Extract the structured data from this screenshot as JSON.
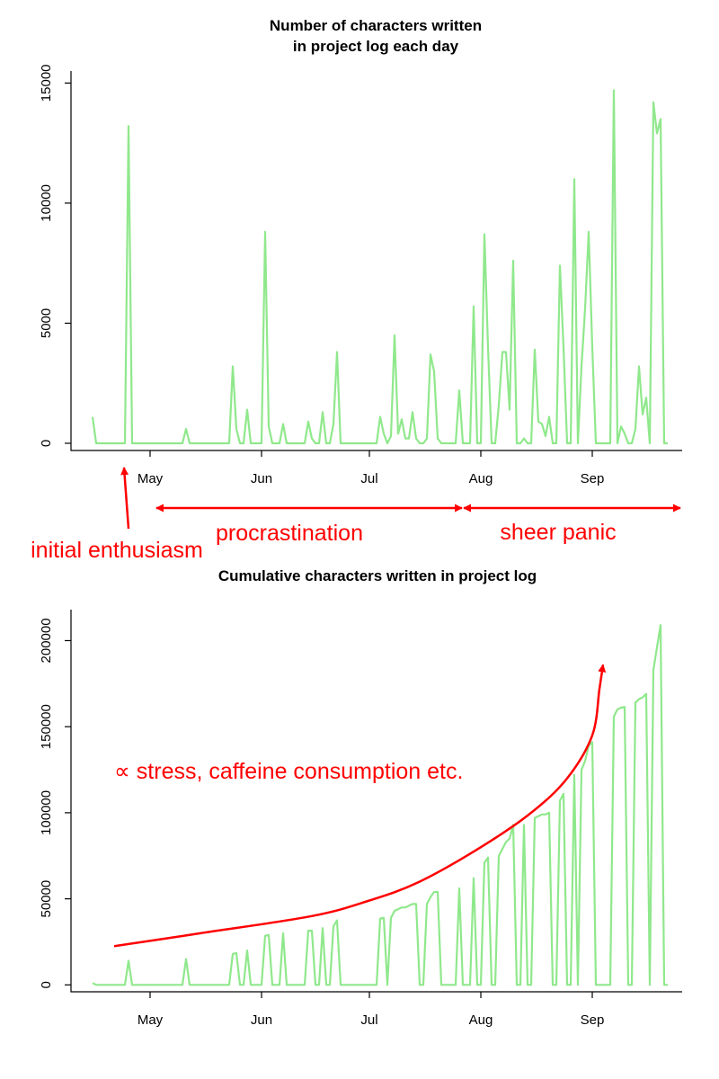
{
  "colors": {
    "series": "#90e88c",
    "annotation": "#ff0000",
    "axis": "#000000"
  },
  "chart_data": [
    {
      "type": "line",
      "title": [
        "Number of characters written",
        "in project log each day"
      ],
      "xlabel": "",
      "ylabel": "",
      "x_axis": "date",
      "x_range": [
        "2017-04-09",
        "2017-09-26"
      ],
      "ylim": [
        -300,
        15500
      ],
      "x_ticks": [
        {
          "date": "2017-05-01",
          "label": "May"
        },
        {
          "date": "2017-06-01",
          "label": "Jun"
        },
        {
          "date": "2017-07-01",
          "label": "Jul"
        },
        {
          "date": "2017-08-01",
          "label": "Aug"
        },
        {
          "date": "2017-09-01",
          "label": "Sep"
        }
      ],
      "y_ticks": [
        0,
        5000,
        10000,
        15000
      ],
      "series": [
        {
          "values": [
            [
              "2017-04-15",
              1100
            ],
            [
              "2017-04-16",
              0
            ],
            [
              "2017-04-23",
              0
            ],
            [
              "2017-04-24",
              0
            ],
            [
              "2017-04-25",
              13200
            ],
            [
              "2017-04-26",
              0
            ],
            [
              "2017-05-09",
              0
            ],
            [
              "2017-05-10",
              0
            ],
            [
              "2017-05-11",
              600
            ],
            [
              "2017-05-12",
              0
            ],
            [
              "2017-05-22",
              0
            ],
            [
              "2017-05-23",
              0
            ],
            [
              "2017-05-24",
              3200
            ],
            [
              "2017-05-25",
              600
            ],
            [
              "2017-05-26",
              0
            ],
            [
              "2017-05-27",
              0
            ],
            [
              "2017-05-28",
              1400
            ],
            [
              "2017-05-29",
              0
            ],
            [
              "2017-06-01",
              0
            ],
            [
              "2017-06-02",
              8800
            ],
            [
              "2017-06-03",
              700
            ],
            [
              "2017-06-04",
              0
            ],
            [
              "2017-06-06",
              0
            ],
            [
              "2017-06-07",
              800
            ],
            [
              "2017-06-08",
              0
            ],
            [
              "2017-06-13",
              0
            ],
            [
              "2017-06-14",
              900
            ],
            [
              "2017-06-15",
              200
            ],
            [
              "2017-06-16",
              0
            ],
            [
              "2017-06-17",
              0
            ],
            [
              "2017-06-18",
              1300
            ],
            [
              "2017-06-19",
              0
            ],
            [
              "2017-06-20",
              0
            ],
            [
              "2017-06-21",
              800
            ],
            [
              "2017-06-22",
              3800
            ],
            [
              "2017-06-23",
              0
            ],
            [
              "2017-07-03",
              0
            ],
            [
              "2017-07-04",
              1100
            ],
            [
              "2017-07-05",
              400
            ],
            [
              "2017-07-06",
              0
            ],
            [
              "2017-07-07",
              300
            ],
            [
              "2017-07-08",
              4500
            ],
            [
              "2017-07-09",
              400
            ],
            [
              "2017-07-10",
              1000
            ],
            [
              "2017-07-11",
              200
            ],
            [
              "2017-07-12",
              200
            ],
            [
              "2017-07-13",
              1300
            ],
            [
              "2017-07-14",
              200
            ],
            [
              "2017-07-15",
              0
            ],
            [
              "2017-07-16",
              0
            ],
            [
              "2017-07-17",
              200
            ],
            [
              "2017-07-18",
              3700
            ],
            [
              "2017-07-19",
              3000
            ],
            [
              "2017-07-20",
              200
            ],
            [
              "2017-07-21",
              0
            ],
            [
              "2017-07-25",
              0
            ],
            [
              "2017-07-26",
              2200
            ],
            [
              "2017-07-27",
              0
            ],
            [
              "2017-07-28",
              0
            ],
            [
              "2017-07-29",
              0
            ],
            [
              "2017-07-30",
              5700
            ],
            [
              "2017-07-31",
              0
            ],
            [
              "2017-08-01",
              0
            ],
            [
              "2017-08-02",
              8700
            ],
            [
              "2017-08-03",
              4000
            ],
            [
              "2017-08-04",
              0
            ],
            [
              "2017-08-05",
              0
            ],
            [
              "2017-08-06",
              1600
            ],
            [
              "2017-08-07",
              3800
            ],
            [
              "2017-08-08",
              3800
            ],
            [
              "2017-08-09",
              1400
            ],
            [
              "2017-08-10",
              7600
            ],
            [
              "2017-08-11",
              0
            ],
            [
              "2017-08-12",
              0
            ],
            [
              "2017-08-13",
              200
            ],
            [
              "2017-08-14",
              0
            ],
            [
              "2017-08-15",
              0
            ],
            [
              "2017-08-16",
              3900
            ],
            [
              "2017-08-17",
              900
            ],
            [
              "2017-08-18",
              800
            ],
            [
              "2017-08-19",
              300
            ],
            [
              "2017-08-20",
              1100
            ],
            [
              "2017-08-21",
              0
            ],
            [
              "2017-08-22",
              0
            ],
            [
              "2017-08-23",
              7400
            ],
            [
              "2017-08-24",
              4000
            ],
            [
              "2017-08-25",
              0
            ],
            [
              "2017-08-26",
              0
            ],
            [
              "2017-08-27",
              11000
            ],
            [
              "2017-08-28",
              0
            ],
            [
              "2017-08-29",
              3200
            ],
            [
              "2017-08-30",
              5600
            ],
            [
              "2017-08-31",
              8800
            ],
            [
              "2017-09-01",
              4000
            ],
            [
              "2017-09-02",
              0
            ],
            [
              "2017-09-06",
              0
            ],
            [
              "2017-09-07",
              14700
            ],
            [
              "2017-09-08",
              0
            ],
            [
              "2017-09-09",
              700
            ],
            [
              "2017-09-10",
              400
            ],
            [
              "2017-09-11",
              0
            ],
            [
              "2017-09-12",
              0
            ],
            [
              "2017-09-13",
              600
            ],
            [
              "2017-09-14",
              3200
            ],
            [
              "2017-09-15",
              1200
            ],
            [
              "2017-09-16",
              1900
            ],
            [
              "2017-09-17",
              0
            ],
            [
              "2017-09-18",
              14200
            ],
            [
              "2017-09-19",
              12900
            ],
            [
              "2017-09-20",
              13500
            ],
            [
              "2017-09-21",
              0
            ],
            [
              "2017-09-22",
              0
            ]
          ]
        }
      ],
      "annotations": [
        {
          "text": "initial enthusiasm"
        },
        {
          "text": "procrastination"
        },
        {
          "text": "sheer panic"
        }
      ]
    },
    {
      "type": "line",
      "title": [
        "Cumulative characters written in project log"
      ],
      "xlabel": "",
      "ylabel": "",
      "x_axis": "date",
      "x_range": [
        "2017-04-09",
        "2017-09-26"
      ],
      "ylim": [
        -4000,
        218000
      ],
      "x_ticks": [
        {
          "date": "2017-05-01",
          "label": "May"
        },
        {
          "date": "2017-06-01",
          "label": "Jun"
        },
        {
          "date": "2017-07-01",
          "label": "Jul"
        },
        {
          "date": "2017-08-01",
          "label": "Aug"
        },
        {
          "date": "2017-09-01",
          "label": "Sep"
        }
      ],
      "y_ticks": [
        0,
        50000,
        100000,
        150000,
        200000
      ],
      "series": [
        {
          "values": [
            [
              "2017-04-15",
              1100
            ],
            [
              "2017-04-16",
              0
            ],
            [
              "2017-04-24",
              0
            ],
            [
              "2017-04-25",
              14000
            ],
            [
              "2017-04-26",
              0
            ],
            [
              "2017-05-10",
              0
            ],
            [
              "2017-05-11",
              15000
            ],
            [
              "2017-05-12",
              0
            ],
            [
              "2017-05-23",
              0
            ],
            [
              "2017-05-24",
              18000
            ],
            [
              "2017-05-25",
              18500
            ],
            [
              "2017-05-26",
              0
            ],
            [
              "2017-05-27",
              0
            ],
            [
              "2017-05-28",
              20000
            ],
            [
              "2017-05-29",
              0
            ],
            [
              "2017-06-01",
              0
            ],
            [
              "2017-06-02",
              28500
            ],
            [
              "2017-06-03",
              29000
            ],
            [
              "2017-06-04",
              0
            ],
            [
              "2017-06-06",
              0
            ],
            [
              "2017-06-07",
              30000
            ],
            [
              "2017-06-08",
              0
            ],
            [
              "2017-06-13",
              0
            ],
            [
              "2017-06-14",
              31500
            ],
            [
              "2017-06-15",
              31500
            ],
            [
              "2017-06-16",
              0
            ],
            [
              "2017-06-17",
              0
            ],
            [
              "2017-06-18",
              33000
            ],
            [
              "2017-06-19",
              0
            ],
            [
              "2017-06-20",
              0
            ],
            [
              "2017-06-21",
              34000
            ],
            [
              "2017-06-22",
              37500
            ],
            [
              "2017-06-23",
              0
            ],
            [
              "2017-07-03",
              0
            ],
            [
              "2017-07-04",
              38500
            ],
            [
              "2017-07-05",
              39000
            ],
            [
              "2017-07-06",
              0
            ],
            [
              "2017-07-07",
              39000
            ],
            [
              "2017-07-08",
              43000
            ],
            [
              "2017-07-09",
              44000
            ],
            [
              "2017-07-10",
              45000
            ],
            [
              "2017-07-11",
              45000
            ],
            [
              "2017-07-12",
              46000
            ],
            [
              "2017-07-13",
              47000
            ],
            [
              "2017-07-14",
              47000
            ],
            [
              "2017-07-15",
              0
            ],
            [
              "2017-07-16",
              0
            ],
            [
              "2017-07-17",
              47000
            ],
            [
              "2017-07-18",
              51000
            ],
            [
              "2017-07-19",
              54000
            ],
            [
              "2017-07-20",
              54000
            ],
            [
              "2017-07-21",
              0
            ],
            [
              "2017-07-25",
              0
            ],
            [
              "2017-07-26",
              56000
            ],
            [
              "2017-07-27",
              0
            ],
            [
              "2017-07-28",
              0
            ],
            [
              "2017-07-29",
              0
            ],
            [
              "2017-07-30",
              62000
            ],
            [
              "2017-07-31",
              0
            ],
            [
              "2017-08-01",
              0
            ],
            [
              "2017-08-02",
              71000
            ],
            [
              "2017-08-03",
              74000
            ],
            [
              "2017-08-04",
              0
            ],
            [
              "2017-08-05",
              0
            ],
            [
              "2017-08-06",
              75000
            ],
            [
              "2017-08-07",
              79000
            ],
            [
              "2017-08-08",
              83000
            ],
            [
              "2017-08-09",
              85000
            ],
            [
              "2017-08-10",
              93000
            ],
            [
              "2017-08-11",
              0
            ],
            [
              "2017-08-12",
              0
            ],
            [
              "2017-08-13",
              93000
            ],
            [
              "2017-08-14",
              0
            ],
            [
              "2017-08-15",
              0
            ],
            [
              "2017-08-16",
              97000
            ],
            [
              "2017-08-17",
              98000
            ],
            [
              "2017-08-18",
              99000
            ],
            [
              "2017-08-19",
              99000
            ],
            [
              "2017-08-20",
              100000
            ],
            [
              "2017-08-21",
              0
            ],
            [
              "2017-08-22",
              0
            ],
            [
              "2017-08-23",
              107000
            ],
            [
              "2017-08-24",
              111000
            ],
            [
              "2017-08-25",
              0
            ],
            [
              "2017-08-26",
              0
            ],
            [
              "2017-08-27",
              122000
            ],
            [
              "2017-08-28",
              0
            ],
            [
              "2017-08-29",
              125000
            ],
            [
              "2017-08-30",
              130000
            ],
            [
              "2017-08-31",
              139000
            ],
            [
              "2017-09-01",
              141000
            ],
            [
              "2017-09-02",
              0
            ],
            [
              "2017-09-06",
              0
            ],
            [
              "2017-09-07",
              156000
            ],
            [
              "2017-09-08",
              160000
            ],
            [
              "2017-09-09",
              161000
            ],
            [
              "2017-09-10",
              161500
            ],
            [
              "2017-09-11",
              0
            ],
            [
              "2017-09-12",
              0
            ],
            [
              "2017-09-13",
              164000
            ],
            [
              "2017-09-14",
              166000
            ],
            [
              "2017-09-15",
              167000
            ],
            [
              "2017-09-16",
              169000
            ],
            [
              "2017-09-17",
              0
            ],
            [
              "2017-09-18",
              183000
            ],
            [
              "2017-09-19",
              196000
            ],
            [
              "2017-09-20",
              209000
            ],
            [
              "2017-09-21",
              0
            ],
            [
              "2017-09-22",
              0
            ]
          ]
        }
      ],
      "trend_curve": [
        [
          "2017-04-21",
          22500
        ],
        [
          "2017-05-15",
          30000
        ],
        [
          "2017-06-15",
          40000
        ],
        [
          "2017-07-01",
          49000
        ],
        [
          "2017-07-15",
          60000
        ],
        [
          "2017-08-01",
          80000
        ],
        [
          "2017-08-15",
          100000
        ],
        [
          "2017-08-25",
          120000
        ],
        [
          "2017-09-01",
          145000
        ],
        [
          "2017-09-03",
          172000
        ],
        [
          "2017-09-04",
          186000
        ]
      ],
      "annotations": [
        {
          "text": "∝ stress, caffeine consumption etc."
        }
      ]
    }
  ]
}
